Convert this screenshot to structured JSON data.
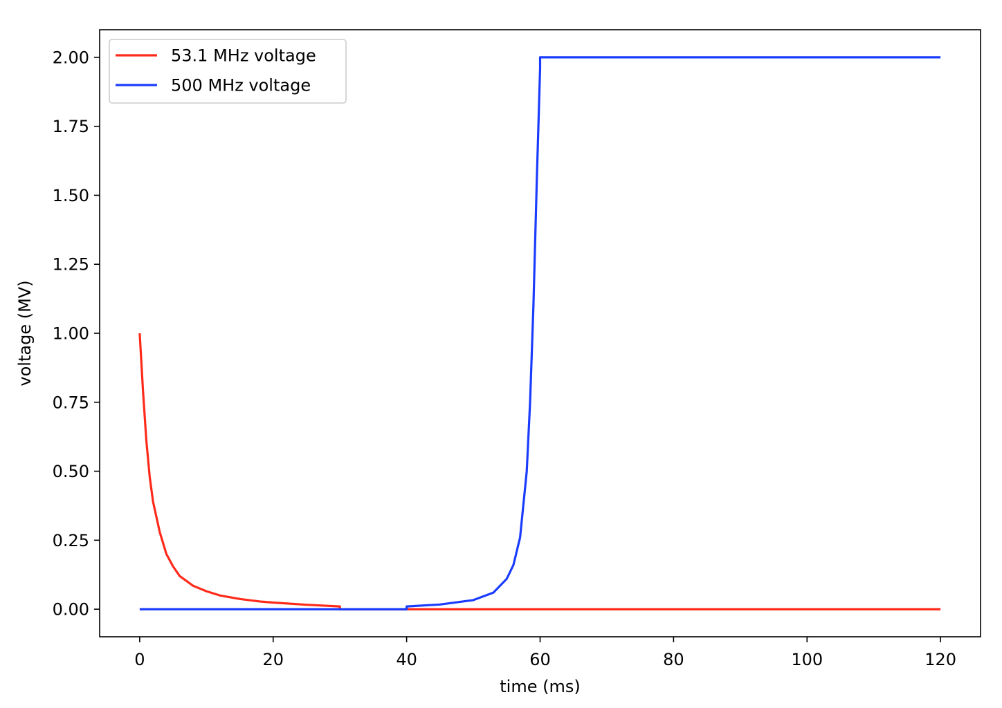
{
  "chart_data": {
    "type": "line",
    "title": "",
    "xlabel": "time (ms)",
    "ylabel": "voltage (MV)",
    "xlim": [
      -6,
      126
    ],
    "ylim": [
      -0.1,
      2.1
    ],
    "x_ticks": [
      0,
      20,
      40,
      60,
      80,
      100,
      120
    ],
    "x_tick_labels": [
      "0",
      "20",
      "40",
      "60",
      "80",
      "100",
      "120"
    ],
    "y_ticks": [
      0.0,
      0.25,
      0.5,
      0.75,
      1.0,
      1.25,
      1.5,
      1.75,
      2.0
    ],
    "y_tick_labels": [
      "0.00",
      "0.25",
      "0.50",
      "0.75",
      "1.00",
      "1.25",
      "1.50",
      "1.75",
      "2.00"
    ],
    "grid": false,
    "legend_position": "upper-left",
    "series": [
      {
        "name": "53.1 MHz voltage",
        "color": "#ff2a1a",
        "x": [
          0,
          0.5,
          1,
          1.5,
          2,
          3,
          4,
          5,
          6,
          8,
          10,
          12,
          15,
          18,
          20,
          25,
          30,
          30,
          40,
          60,
          80,
          100,
          120
        ],
        "y": [
          1.0,
          0.79,
          0.61,
          0.48,
          0.39,
          0.28,
          0.2,
          0.155,
          0.12,
          0.085,
          0.065,
          0.05,
          0.037,
          0.028,
          0.024,
          0.016,
          0.01,
          0.0,
          0.0,
          0.0,
          0.0,
          0.0,
          0.0
        ]
      },
      {
        "name": "500 MHz voltage",
        "color": "#1a3cff",
        "x": [
          0,
          20,
          40,
          40,
          45,
          50,
          53,
          55,
          56,
          57,
          58,
          58.5,
          59,
          59.5,
          60,
          60,
          80,
          100,
          120
        ],
        "y": [
          0.0,
          0.0,
          0.0,
          0.01,
          0.017,
          0.033,
          0.06,
          0.11,
          0.16,
          0.26,
          0.5,
          0.75,
          1.1,
          1.55,
          1.96,
          2.0,
          2.0,
          2.0,
          2.0
        ]
      }
    ]
  }
}
